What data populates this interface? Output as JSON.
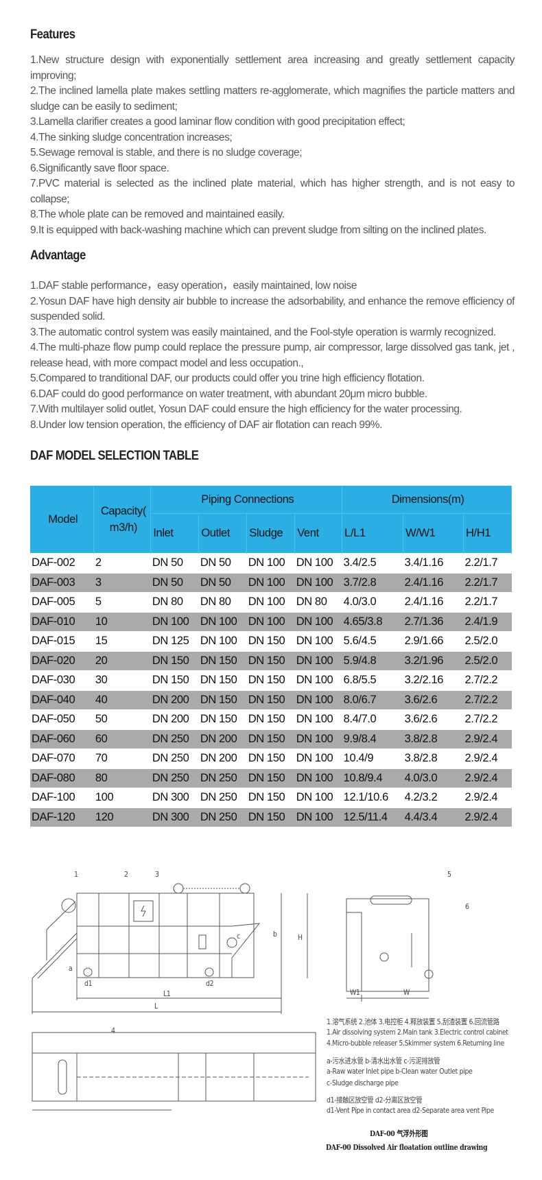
{
  "features": {
    "title": "Features",
    "items": [
      "1.New structure design with exponentially settlement area increasing and greatly settlement capacity improving;",
      "2.The inclined lamella plate makes settling matters re-agglomerate, which magnifies the particle matters and sludge can be easily to sediment;",
      "3.Lamella clarifier creates a good laminar flow condition with good precipitation effect;",
      "4.The sinking sludge concentration increases;",
      "5.Sewage removal is stable, and there is no sludge coverage;",
      "6.Significantly save floor space.",
      "7.PVC material is selected as the inclined plate material, which has higher strength, and is not easy to collapse;",
      "8.The whole plate can be removed and maintained easily.",
      "9.It is equipped with back-washing machine which can prevent sludge from silting on the inclined plates."
    ]
  },
  "advantage": {
    "title": "Advantage",
    "items": [
      "1.DAF stable performance，easy operation，easily maintained, low noise",
      "2.Yosun DAF have high density air bubble to increase the adsorbability, and enhance the remove  efficiency of suspended solid.",
      "3.The automatic control system was easily maintained, and the Fool-style operation is warmly recognized.",
      "4.The multi-phaze flow pump could replace the pressure pump, air compressor, large dissolved gas tank, jet , release head, with more compact model and less occupation.,",
      "5.Compared to tranditional DAF,  our products could offer you trine high efficiency flotation.",
      "6.DAF could do good performance on  water treatment, with abundant 20μm  micro bubble.",
      "7.With multilayer solid outlet, Yosun DAF could ensure the high efficiency for the water processing.",
      "8.Under low tension operation,  the efficiency of DAF air flotation can reach 99%."
    ]
  },
  "table": {
    "title": "DAF MODEL SELECTION TABLE",
    "header_color": "#2aaee4",
    "alt_row_color": "#aba9a9",
    "group_headers": {
      "model": "Model",
      "capacity": "Capacity( m3/h)",
      "piping": "Piping Connections",
      "dimensions": "Dimensions(m)"
    },
    "sub_headers": [
      "Inlet",
      "Outlet",
      "Sludge",
      "Vent",
      "L/L1",
      "W/W1",
      "H/H1"
    ],
    "rows": [
      [
        "DAF-002",
        "2",
        "DN 50",
        "DN 50",
        "DN 100",
        "DN 100",
        "3.4/2.5",
        "3.4/1.16",
        "2.2/1.7"
      ],
      [
        "DAF-003",
        "3",
        "DN 50",
        "DN 50",
        "DN 100",
        "DN 100",
        "3.7/2.8",
        "2.4/1.16",
        "2.2/1.7"
      ],
      [
        "DAF-005",
        "5",
        "DN 80",
        "DN 80",
        "DN 100",
        "DN 80",
        "4.0/3.0",
        "2.4/1.16",
        "2.2/1.7"
      ],
      [
        "DAF-010",
        "10",
        "DN 100",
        "DN 100",
        "DN 100",
        "DN 100",
        "4.65/3.8",
        "2.7/1.36",
        "2.4/1.9"
      ],
      [
        "DAF-015",
        "15",
        "DN 125",
        "DN 100",
        "DN 150",
        "DN 100",
        "5.6/4.5",
        "2.9/1.66",
        "2.5/2.0"
      ],
      [
        "DAF-020",
        "20",
        "DN 150",
        "DN 150",
        "DN 150",
        "DN 100",
        "5.9/4.8",
        "3.2/1.96",
        "2.5/2.0"
      ],
      [
        "DAF-030",
        "30",
        "DN 150",
        "DN 150",
        "DN 150",
        "DN 100",
        "6.8/5.5",
        "3.2/2.16",
        "2.7/2.2"
      ],
      [
        "DAF-040",
        "40",
        "DN 200",
        "DN 150",
        "DN 150",
        "DN 100",
        "8.0/6.7",
        "3.6/2.6",
        "2.7/2.2"
      ],
      [
        "DAF-050",
        "50",
        "DN 200",
        "DN 150",
        "DN 150",
        "DN 100",
        "8.4/7.0",
        "3.6/2.6",
        "2.7/2.2"
      ],
      [
        "DAF-060",
        "60",
        "DN 250",
        "DN 200",
        "DN 150",
        "DN 100",
        "9.9/8.4",
        "3.8/2.8",
        "2.9/2.4"
      ],
      [
        "DAF-070",
        "70",
        "DN 250",
        "DN 200",
        "DN 150",
        "DN 100",
        "10.4/9",
        "3.8/2.8",
        "2.9/2.4"
      ],
      [
        "DAF-080",
        "80",
        "DN 250",
        "DN 250",
        "DN 150",
        "DN 100",
        "10.8/9.4",
        "4.0/3.0",
        "2.9/2.4"
      ],
      [
        "DAF-100",
        "100",
        "DN 300",
        "DN 250",
        "DN 150",
        "DN 100",
        "12.1/10.6",
        "4.2/3.2",
        "2.9/2.4"
      ],
      [
        "DAF-120",
        "120",
        "DN 300",
        "DN 250",
        "DN 150",
        "DN 100",
        "12.5/11.4",
        "4.4/3.4",
        "2.9/2.4"
      ]
    ]
  },
  "drawing": {
    "labels": {
      "n1": "1",
      "n2": "2",
      "n3": "3",
      "n4": "4",
      "n5": "5",
      "n6": "6",
      "a": "a",
      "b": "b",
      "c": "c",
      "d1": "d1",
      "d2": "d2",
      "L1": "L1",
      "L": "L",
      "H": "H",
      "W1": "W1",
      "W": "W"
    },
    "legend": {
      "components_cn": "1.溶气系统 2.池体 3.电控柜 4.释放装置 5.刮渣装置 6.回流管路",
      "components_1": "1.Air dissolving system 2.Main tank 3.Electric control cabinet",
      "components_2": "4.Micro-bubble releaser 5.Skimmer system 6.Returning line",
      "pipes_cn": "a-污水进水管   b-清水出水管   c-污泥排放管",
      "pipes_1": "a-Raw water Inlet pipe    b-Clean water Outlet pipe",
      "pipes_2": "c-Sludge discharge pipe",
      "vents_cn": "d1-接触区放空管   d2-分离区放空管",
      "vents_1": "d1-Vent Pipe in contact area   d2-Separate area vent Pipe",
      "title_cn": "DAF-00   气浮外形图",
      "title_en": "DAF-00  Dissolved Air floatation outline drawing"
    }
  }
}
